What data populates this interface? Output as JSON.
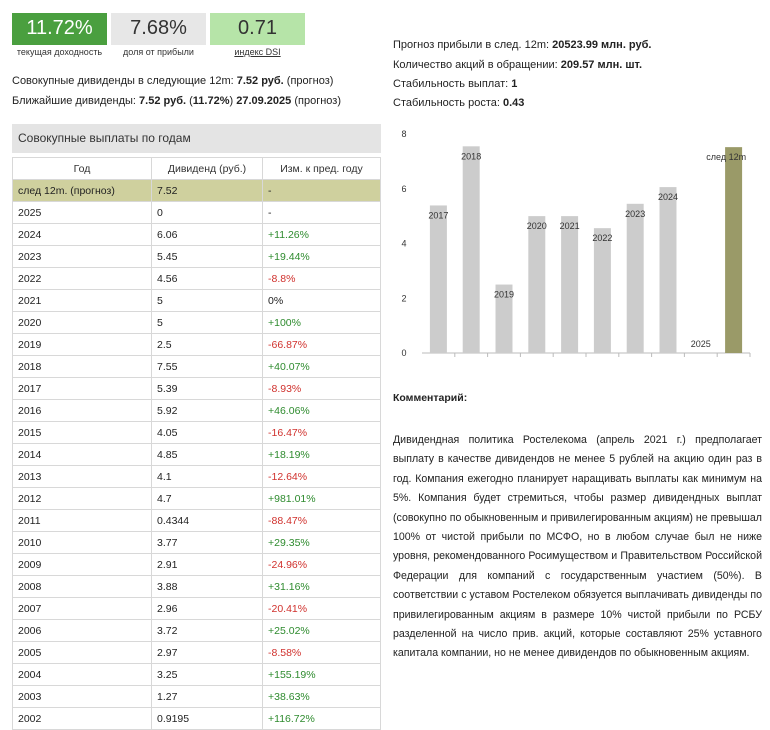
{
  "stats": [
    {
      "value": "11.72%",
      "label": "текущая доходность"
    },
    {
      "value": "7.68%",
      "label": "доля от прибыли"
    },
    {
      "value": "0.71",
      "label": "индекс DSI"
    }
  ],
  "summary": {
    "next12_prefix": "Совокупные дивиденды в следующие 12m: ",
    "next12_value": "7.52 руб.",
    "next12_suffix": " (прогноз)",
    "nearest_prefix": "Ближайшие дивиденды: ",
    "nearest_value": "7.52 руб.",
    "nearest_paren_open": " (",
    "nearest_yield": "11.72%",
    "nearest_paren_close": ") ",
    "nearest_date": "27.09.2025",
    "nearest_suffix": " (прогноз)"
  },
  "right_info": [
    {
      "label": "Прогноз прибыли в след. 12m: ",
      "value": "20523.99 млн. руб."
    },
    {
      "label": "Количество акций в обращении: ",
      "value": "209.57 млн. шт."
    },
    {
      "label": "Стабильность выплат: ",
      "value": "1"
    },
    {
      "label": "Стабильность роста: ",
      "value": "0.43"
    }
  ],
  "table": {
    "title": "Совокупные выплаты по годам",
    "headers": [
      "Год",
      "Дивиденд (руб.)",
      "Изм. к пред. году"
    ],
    "rows": [
      {
        "year": "след 12m. (прогноз)",
        "div": "7.52",
        "chg": "-",
        "kind": "forecast"
      },
      {
        "year": "2025",
        "div": "0",
        "chg": "-",
        "kind": "none"
      },
      {
        "year": "2024",
        "div": "6.06",
        "chg": "+11.26%",
        "kind": "pos"
      },
      {
        "year": "2023",
        "div": "5.45",
        "chg": "+19.44%",
        "kind": "pos"
      },
      {
        "year": "2022",
        "div": "4.56",
        "chg": "-8.8%",
        "kind": "neg"
      },
      {
        "year": "2021",
        "div": "5",
        "chg": "0%",
        "kind": "none"
      },
      {
        "year": "2020",
        "div": "5",
        "chg": "+100%",
        "kind": "pos"
      },
      {
        "year": "2019",
        "div": "2.5",
        "chg": "-66.87%",
        "kind": "neg"
      },
      {
        "year": "2018",
        "div": "7.55",
        "chg": "+40.07%",
        "kind": "pos"
      },
      {
        "year": "2017",
        "div": "5.39",
        "chg": "-8.93%",
        "kind": "neg"
      },
      {
        "year": "2016",
        "div": "5.92",
        "chg": "+46.06%",
        "kind": "pos"
      },
      {
        "year": "2015",
        "div": "4.05",
        "chg": "-16.47%",
        "kind": "neg"
      },
      {
        "year": "2014",
        "div": "4.85",
        "chg": "+18.19%",
        "kind": "pos"
      },
      {
        "year": "2013",
        "div": "4.1",
        "chg": "-12.64%",
        "kind": "neg"
      },
      {
        "year": "2012",
        "div": "4.7",
        "chg": "+981.01%",
        "kind": "pos"
      },
      {
        "year": "2011",
        "div": "0.4344",
        "chg": "-88.47%",
        "kind": "neg"
      },
      {
        "year": "2010",
        "div": "3.77",
        "chg": "+29.35%",
        "kind": "pos"
      },
      {
        "year": "2009",
        "div": "2.91",
        "chg": "-24.96%",
        "kind": "neg"
      },
      {
        "year": "2008",
        "div": "3.88",
        "chg": "+31.16%",
        "kind": "pos"
      },
      {
        "year": "2007",
        "div": "2.96",
        "chg": "-20.41%",
        "kind": "neg"
      },
      {
        "year": "2006",
        "div": "3.72",
        "chg": "+25.02%",
        "kind": "pos"
      },
      {
        "year": "2005",
        "div": "2.97",
        "chg": "-8.58%",
        "kind": "neg"
      },
      {
        "year": "2004",
        "div": "3.25",
        "chg": "+155.19%",
        "kind": "pos"
      },
      {
        "year": "2003",
        "div": "1.27",
        "chg": "+38.63%",
        "kind": "pos"
      },
      {
        "year": "2002",
        "div": "0.9195",
        "chg": "+116.72%",
        "kind": "pos"
      }
    ]
  },
  "chart_data": {
    "type": "bar",
    "categories": [
      "2017",
      "2018",
      "2019",
      "2020",
      "2021",
      "2022",
      "2023",
      "2024",
      "2025",
      "след 12m"
    ],
    "values": [
      5.39,
      7.55,
      2.5,
      5,
      5,
      4.56,
      5.45,
      6.06,
      0,
      7.52
    ],
    "highlight_index": 9,
    "ylim": [
      0,
      8
    ],
    "yticks": [
      0,
      2,
      4,
      6,
      8
    ],
    "bar_color": "#cccccc",
    "highlight_color": "#9a9a68",
    "title": "",
    "xlabel": "",
    "ylabel": ""
  },
  "comment": {
    "heading": "Комментарий:",
    "text": "Дивидендная политика Ростелекома (апрель 2021 г.) предполагает выплату в качестве дивидендов не менее 5 рублей на акцию один раз в год. Компания ежегодно планирует наращивать выплаты как минимум на 5%. Компания будет стремиться, чтобы размер дивидендных выплат (совокупно по обыкновенным и привилегированным акциям) не превышал 100% от чистой прибыли по МСФО, но в любом случае был не ниже уровня, рекомендованного Росимуществом и Правительством Российской Федерации для компаний с государственным участием (50%). В соответствии с уставом Ростелеком обязуется выплачивать дивиденды по привилегированным акциям в размере 10% чистой прибыли по РСБУ разделенной на число прив. акций, которые составляют 25% уставного капитала компании, но не менее дивидендов по обыкновенным акциям."
  }
}
